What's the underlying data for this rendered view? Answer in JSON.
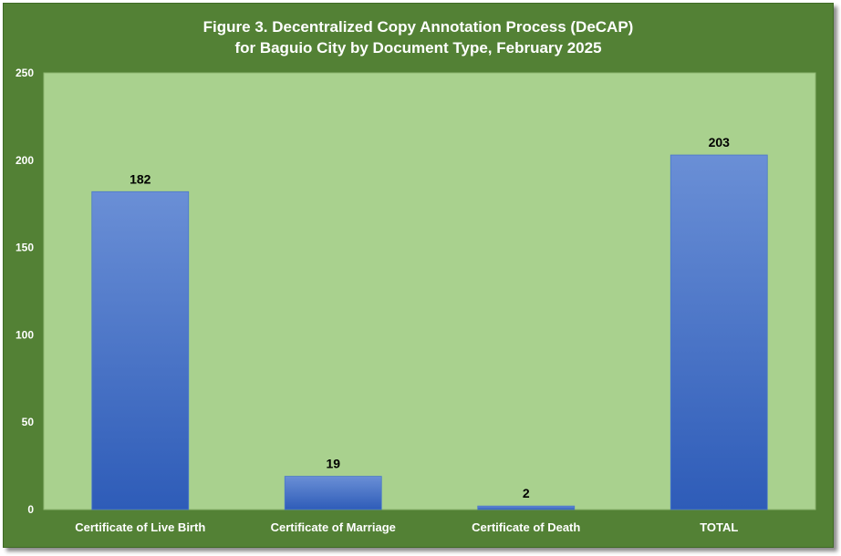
{
  "chart_data": {
    "type": "bar",
    "title": "Figure 3. Decentralized Copy Annotation Process (DeCAP)",
    "subtitle": "for Baguio City by Document Type, February 2025",
    "categories": [
      "Certificate of Live Birth",
      "Certificate of Marriage",
      "Certificate of Death",
      "TOTAL"
    ],
    "values": [
      182,
      19,
      2,
      203
    ],
    "data_labels": [
      "182",
      "19",
      "2",
      "203"
    ],
    "y_ticks": [
      0,
      50,
      100,
      150,
      200,
      250
    ],
    "ylim": [
      0,
      250
    ],
    "xlabel": "",
    "ylabel": "",
    "grid": false,
    "legend": "none",
    "colors": {
      "frame": "#538135",
      "plot_area": "#a9d18e",
      "bar_top": "#6a8fd6",
      "bar_bottom": "#2e5cb8",
      "axis_text": "#ffffff",
      "label_text": "#000000"
    }
  }
}
